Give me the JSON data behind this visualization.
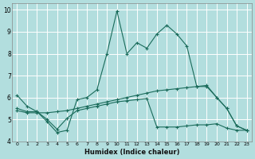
{
  "xlabel": "Humidex (Indice chaleur)",
  "ylabel": "",
  "background_color": "#b2dede",
  "grid_color": "#ffffff",
  "line_color": "#1a6b5a",
  "xlim": [
    -0.5,
    23.5
  ],
  "ylim": [
    4,
    10.3
  ],
  "yticks": [
    4,
    5,
    6,
    7,
    8,
    9,
    10
  ],
  "xticks": [
    0,
    1,
    2,
    3,
    4,
    5,
    6,
    7,
    8,
    9,
    10,
    11,
    12,
    13,
    14,
    15,
    16,
    17,
    18,
    19,
    20,
    21,
    22,
    23
  ],
  "series1_x": [
    0,
    1,
    2,
    3,
    4,
    5,
    6,
    7,
    8,
    9,
    10,
    11,
    12,
    13,
    14,
    15,
    16,
    17,
    18,
    19,
    20,
    21,
    22,
    23
  ],
  "series1_y": [
    6.1,
    5.6,
    5.35,
    4.9,
    4.4,
    4.5,
    5.9,
    6.0,
    6.35,
    8.0,
    9.95,
    8.0,
    8.5,
    8.25,
    8.9,
    9.3,
    8.9,
    8.35,
    6.5,
    6.5,
    6.0,
    5.5,
    4.7,
    4.5
  ],
  "series2_x": [
    0,
    1,
    2,
    3,
    4,
    5,
    6,
    7,
    8,
    9,
    10,
    11,
    12,
    13,
    14,
    15,
    16,
    17,
    18,
    19,
    20,
    21,
    22,
    23
  ],
  "series2_y": [
    5.4,
    5.3,
    5.3,
    5.3,
    5.35,
    5.4,
    5.5,
    5.6,
    5.7,
    5.8,
    5.9,
    6.0,
    6.1,
    6.2,
    6.3,
    6.35,
    6.4,
    6.45,
    6.5,
    6.55,
    6.0,
    5.5,
    4.7,
    4.5
  ],
  "series3_x": [
    0,
    1,
    2,
    3,
    4,
    5,
    6,
    7,
    8,
    9,
    10,
    11,
    12,
    13,
    14,
    15,
    16,
    17,
    18,
    19,
    20,
    21,
    22,
    23
  ],
  "series3_y": [
    5.5,
    5.35,
    5.35,
    5.0,
    4.55,
    5.05,
    5.4,
    5.5,
    5.6,
    5.7,
    5.8,
    5.85,
    5.9,
    5.95,
    4.65,
    4.65,
    4.65,
    4.7,
    4.75,
    4.75,
    4.8,
    4.6,
    4.5,
    4.5
  ]
}
